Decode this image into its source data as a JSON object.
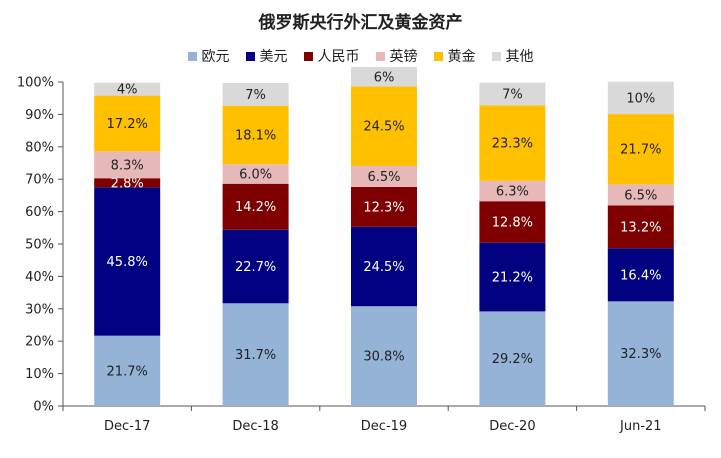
{
  "chart_data": {
    "type": "bar",
    "stacked": true,
    "title": "俄罗斯央行外汇及黄金资产",
    "categories": [
      "Dec-17",
      "Dec-18",
      "Dec-19",
      "Dec-20",
      "Jun-21"
    ],
    "ylim": [
      0,
      100
    ],
    "yticks": [
      "0%",
      "10%",
      "20%",
      "30%",
      "40%",
      "50%",
      "60%",
      "70%",
      "80%",
      "90%",
      "100%"
    ],
    "legend_position": "top",
    "grid": false,
    "series": [
      {
        "name": "欧元",
        "color": "#95B3D7",
        "label_color": "#222222",
        "values": [
          21.7,
          31.7,
          30.8,
          29.2,
          32.3
        ],
        "labels": [
          "21.7%",
          "31.7%",
          "30.8%",
          "29.2%",
          "32.3%"
        ]
      },
      {
        "name": "美元",
        "color": "#000080",
        "label_color": "#ffffff",
        "values": [
          45.8,
          22.7,
          24.5,
          21.2,
          16.4
        ],
        "labels": [
          "45.8%",
          "22.7%",
          "24.5%",
          "21.2%",
          "16.4%"
        ]
      },
      {
        "name": "人民币",
        "color": "#7F0000",
        "label_color": "#ffffff",
        "values": [
          2.8,
          14.2,
          12.3,
          12.8,
          13.2
        ],
        "labels": [
          "2.8%",
          "14.2%",
          "12.3%",
          "12.8%",
          "13.2%"
        ]
      },
      {
        "name": "英镑",
        "color": "#E6B9B8",
        "label_color": "#222222",
        "values": [
          8.3,
          6.0,
          6.5,
          6.3,
          6.5
        ],
        "labels": [
          "8.3%",
          "6.0%",
          "6.5%",
          "6.3%",
          "6.5%"
        ]
      },
      {
        "name": "黄金",
        "color": "#FFC000",
        "label_color": "#222222",
        "values": [
          17.2,
          18.1,
          24.5,
          23.3,
          21.7
        ],
        "labels": [
          "17.2%",
          "18.1%",
          "24.5%",
          "23.3%",
          "21.7%"
        ]
      },
      {
        "name": "其他",
        "color": "#D9D9D9",
        "label_color": "#222222",
        "values": [
          4,
          7,
          6,
          7,
          10
        ],
        "labels": [
          "4%",
          "7%",
          "6%",
          "7%",
          "10%"
        ]
      }
    ]
  }
}
